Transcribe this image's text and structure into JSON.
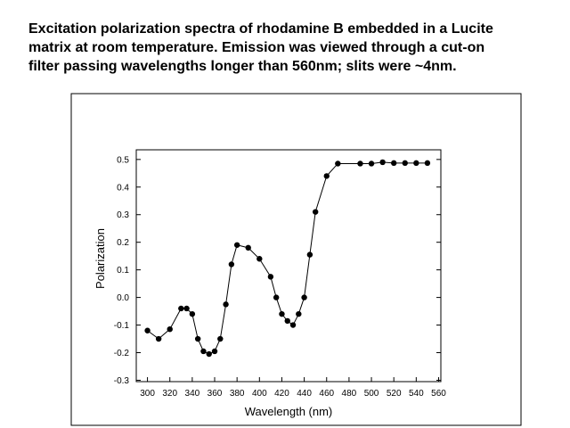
{
  "chart_data": {
    "type": "line",
    "title": [
      "Excitation polarization spectra of rhodamine B embedded in a Lucite",
      "matrix at room temperature.  Emission was viewed through a cut-on",
      "filter passing wavelengths longer than 560nm; slits were ~4nm."
    ],
    "x_label": "Wavelength (nm)",
    "y_label": "Polarization",
    "x": [
      300,
      310,
      320,
      330,
      335,
      340,
      345,
      350,
      355,
      360,
      365,
      370,
      375,
      380,
      390,
      400,
      410,
      415,
      420,
      425,
      430,
      435,
      440,
      445,
      450,
      460,
      470,
      490,
      500,
      510,
      520,
      530,
      540,
      550
    ],
    "series": [
      {
        "color": "#000000",
        "values": [
          -0.12,
          -0.15,
          -0.115,
          -0.04,
          -0.04,
          -0.06,
          -0.15,
          -0.195,
          -0.205,
          -0.195,
          -0.15,
          -0.025,
          0.12,
          0.19,
          0.18,
          0.14,
          0.075,
          0.0,
          -0.06,
          -0.085,
          -0.1,
          -0.06,
          0.0,
          0.155,
          0.31,
          0.44,
          0.485,
          0.485,
          0.485,
          0.49,
          0.487,
          0.487,
          0.487,
          0.487
        ]
      }
    ],
    "xlim": [
      290,
      562
    ],
    "ylim": [
      -0.305,
      0.535
    ],
    "xticks": [
      300,
      320,
      340,
      360,
      380,
      400,
      420,
      440,
      460,
      480,
      500,
      520,
      540,
      560
    ],
    "yticks": [
      -0.3,
      -0.2,
      -0.1,
      {
        "value": 0,
        "label": "0.0"
      },
      0.1,
      0.2,
      0.3,
      0.4,
      0.5
    ]
  }
}
